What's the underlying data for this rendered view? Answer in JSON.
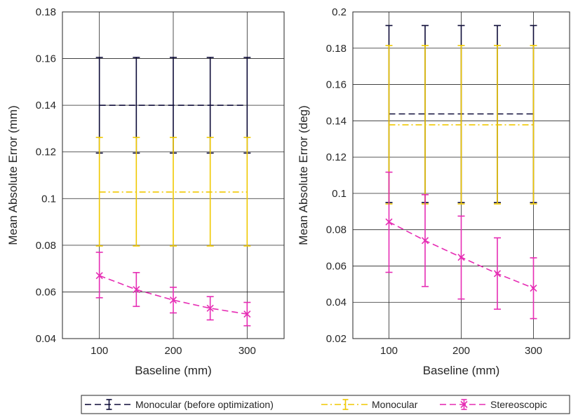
{
  "colors": {
    "monocular_before": "#0e0c38",
    "monocular": "#f0c800",
    "stereoscopic": "#e62db4",
    "grid": "#262626"
  },
  "chart_data": [
    {
      "type": "line",
      "xlabel": "Baseline (mm)",
      "ylabel": "Mean Absolute Error (mm)",
      "xlim": [
        50,
        350
      ],
      "ylim": [
        0.04,
        0.18
      ],
      "xticks": [
        100,
        200,
        300
      ],
      "xtick_labels": [
        "100",
        "200",
        "300"
      ],
      "yticks": [
        0.04,
        0.06,
        0.08,
        0.1,
        0.12,
        0.14,
        0.16,
        0.18
      ],
      "ytick_labels": [
        "0.04",
        "0.06",
        "0.08",
        "0.1",
        "0.12",
        "0.14",
        "0.16",
        "0.18"
      ],
      "grid": true,
      "x": [
        100,
        150,
        200,
        250,
        300
      ],
      "series": [
        {
          "key": "monocular_before",
          "name": "Monocular (before optimization)",
          "style": "dash",
          "values": [
            0.14,
            0.14,
            0.14,
            0.14,
            0.14
          ],
          "err_low": [
            0.1195,
            0.1195,
            0.1195,
            0.1195,
            0.1195
          ],
          "err_high": [
            0.1605,
            0.1605,
            0.1605,
            0.1605,
            0.1605
          ]
        },
        {
          "key": "monocular",
          "name": "Monocular",
          "style": "dashdot",
          "values": [
            0.1028,
            0.1028,
            0.1028,
            0.1028,
            0.1028
          ],
          "err_low": [
            0.0797,
            0.0797,
            0.0797,
            0.0797,
            0.0797
          ],
          "err_high": [
            0.1262,
            0.1262,
            0.1262,
            0.1262,
            0.1262
          ]
        },
        {
          "key": "stereoscopic",
          "name": "Stereoscopic",
          "style": "dash",
          "marker": "x",
          "values": [
            0.067,
            0.061,
            0.0565,
            0.053,
            0.0505
          ],
          "err_low": [
            0.0575,
            0.0538,
            0.051,
            0.048,
            0.0455
          ],
          "err_high": [
            0.077,
            0.0683,
            0.062,
            0.058,
            0.0555
          ]
        }
      ]
    },
    {
      "type": "line",
      "xlabel": "Baseline (mm)",
      "ylabel": "Mean Absolute Error (deg)",
      "xlim": [
        50,
        350
      ],
      "ylim": [
        0.02,
        0.2
      ],
      "xticks": [
        100,
        200,
        300
      ],
      "xtick_labels": [
        "100",
        "200",
        "300"
      ],
      "yticks": [
        0.02,
        0.04,
        0.06,
        0.08,
        0.1,
        0.12,
        0.14,
        0.16,
        0.18,
        0.2
      ],
      "ytick_labels": [
        "0.02",
        "0.04",
        "0.06",
        "0.08",
        "0.1",
        "0.12",
        "0.14",
        "0.16",
        "0.18",
        "0.2"
      ],
      "grid": true,
      "x": [
        100,
        150,
        200,
        250,
        300
      ],
      "series": [
        {
          "key": "monocular_before",
          "name": "Monocular (before optimization)",
          "style": "dash",
          "values": [
            0.1438,
            0.1438,
            0.1438,
            0.1438,
            0.1438
          ],
          "err_low": [
            0.095,
            0.095,
            0.095,
            0.095,
            0.095
          ],
          "err_high": [
            0.1925,
            0.1925,
            0.1925,
            0.1925,
            0.1925
          ]
        },
        {
          "key": "monocular",
          "name": "Monocular",
          "style": "dashdot",
          "values": [
            0.1378,
            0.1378,
            0.1378,
            0.1378,
            0.1378
          ],
          "err_low": [
            0.0942,
            0.0942,
            0.0942,
            0.0942,
            0.0942
          ],
          "err_high": [
            0.1815,
            0.1815,
            0.1815,
            0.1815,
            0.1815
          ]
        },
        {
          "key": "stereoscopic",
          "name": "Stereoscopic",
          "style": "dash",
          "marker": "x",
          "values": [
            0.0843,
            0.074,
            0.0648,
            0.0558,
            0.0478
          ],
          "err_low": [
            0.0565,
            0.0487,
            0.0418,
            0.0362,
            0.031
          ],
          "err_high": [
            0.1117,
            0.0993,
            0.0875,
            0.0755,
            0.0645
          ]
        }
      ]
    }
  ],
  "legend": {
    "placement": "bottom",
    "entries": [
      {
        "key": "monocular_before",
        "label": "Monocular (before optimization)"
      },
      {
        "key": "monocular",
        "label": "Monocular"
      },
      {
        "key": "stereoscopic",
        "label": "Stereoscopic"
      }
    ]
  }
}
